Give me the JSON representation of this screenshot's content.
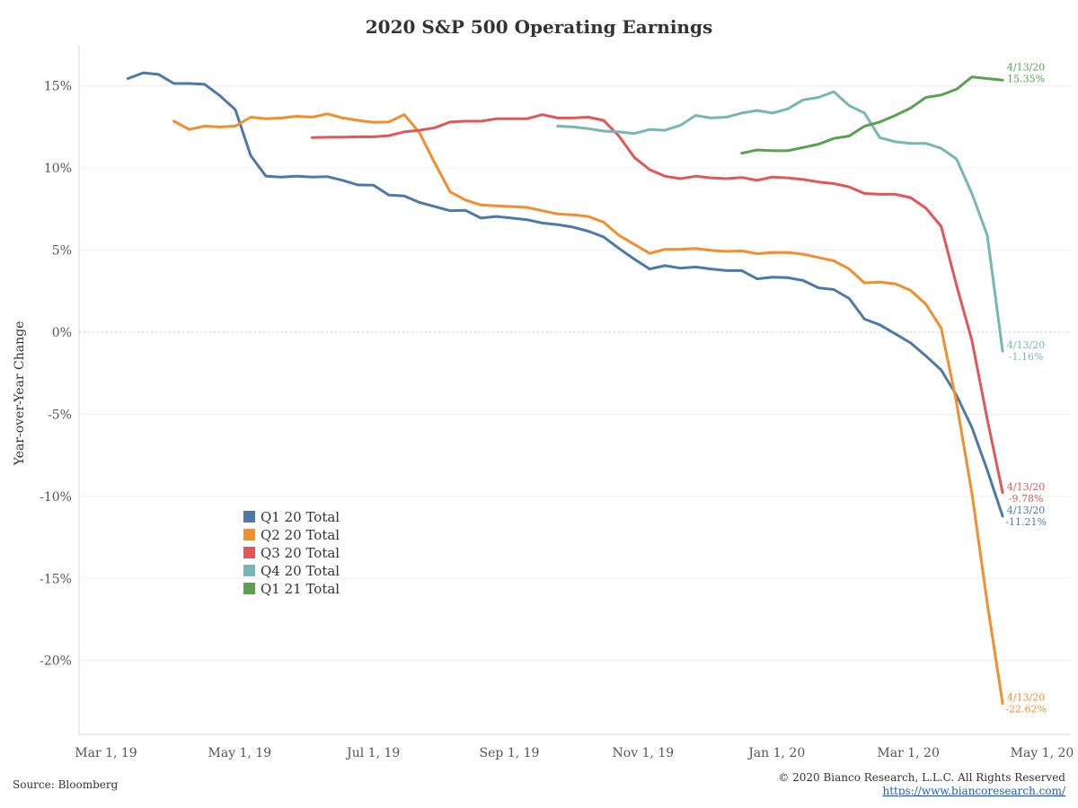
{
  "chart_data": {
    "type": "line",
    "title": "2020 S&P 500 Operating Earnings",
    "ylabel": "Year-over-Year Change",
    "xlabel": "",
    "x_start": "2019-03-01",
    "x_end": "2020-05-01",
    "x_ticks": [
      {
        "date": "2019-03-01",
        "label": "Mar 1, 19"
      },
      {
        "date": "2019-05-01",
        "label": "May 1, 19"
      },
      {
        "date": "2019-07-01",
        "label": "Jul 1, 19"
      },
      {
        "date": "2019-09-01",
        "label": "Sep 1, 19"
      },
      {
        "date": "2019-11-01",
        "label": "Nov 1, 19"
      },
      {
        "date": "2020-01-01",
        "label": "Jan 1, 20"
      },
      {
        "date": "2020-03-01",
        "label": "Mar 1, 20"
      },
      {
        "date": "2020-05-01",
        "label": "May 1, 20"
      }
    ],
    "y_ticks": [
      {
        "value": 15,
        "label": "15%"
      },
      {
        "value": 10,
        "label": "10%"
      },
      {
        "value": 5,
        "label": "5%"
      },
      {
        "value": 0,
        "label": "0%"
      },
      {
        "value": -5,
        "label": "-5%"
      },
      {
        "value": -10,
        "label": "-10%"
      },
      {
        "value": -15,
        "label": "-15%"
      },
      {
        "value": -20,
        "label": "-20%"
      }
    ],
    "ylim": [
      -24.5,
      17.5
    ],
    "grid": true,
    "legend_position": "lower-left",
    "series": [
      {
        "name": "Q1 20 Total",
        "color": "#4e79a7",
        "end_label": {
          "date": "4/13/20",
          "value": "-11.21%"
        },
        "points": [
          [
            "2019-03-11",
            15.45
          ],
          [
            "2019-03-18",
            15.8
          ],
          [
            "2019-03-25",
            15.7
          ],
          [
            "2019-04-01",
            15.15
          ],
          [
            "2019-04-08",
            15.15
          ],
          [
            "2019-04-15",
            15.1
          ],
          [
            "2019-04-22",
            14.4
          ],
          [
            "2019-04-29",
            13.55
          ],
          [
            "2019-05-06",
            10.75
          ],
          [
            "2019-05-13",
            9.5
          ],
          [
            "2019-05-20",
            9.45
          ],
          [
            "2019-05-27",
            9.5
          ],
          [
            "2019-06-03",
            9.45
          ],
          [
            "2019-06-10",
            9.48
          ],
          [
            "2019-06-17",
            9.25
          ],
          [
            "2019-06-24",
            8.97
          ],
          [
            "2019-07-01",
            8.95
          ],
          [
            "2019-07-08",
            8.35
          ],
          [
            "2019-07-15",
            8.3
          ],
          [
            "2019-07-22",
            7.9
          ],
          [
            "2019-07-29",
            7.65
          ],
          [
            "2019-08-05",
            7.4
          ],
          [
            "2019-08-12",
            7.42
          ],
          [
            "2019-08-19",
            6.95
          ],
          [
            "2019-08-26",
            7.05
          ],
          [
            "2019-09-02",
            6.95
          ],
          [
            "2019-09-09",
            6.85
          ],
          [
            "2019-09-16",
            6.65
          ],
          [
            "2019-09-23",
            6.55
          ],
          [
            "2019-09-30",
            6.4
          ],
          [
            "2019-10-07",
            6.15
          ],
          [
            "2019-10-14",
            5.8
          ],
          [
            "2019-10-21",
            5.1
          ],
          [
            "2019-10-28",
            4.45
          ],
          [
            "2019-11-04",
            3.85
          ],
          [
            "2019-11-11",
            4.05
          ],
          [
            "2019-11-18",
            3.9
          ],
          [
            "2019-11-25",
            3.97
          ],
          [
            "2019-12-02",
            3.85
          ],
          [
            "2019-12-09",
            3.75
          ],
          [
            "2019-12-16",
            3.75
          ],
          [
            "2019-12-23",
            3.25
          ],
          [
            "2019-12-30",
            3.35
          ],
          [
            "2020-01-06",
            3.32
          ],
          [
            "2020-01-13",
            3.15
          ],
          [
            "2020-01-20",
            2.7
          ],
          [
            "2020-01-27",
            2.6
          ],
          [
            "2020-02-03",
            2.05
          ],
          [
            "2020-02-10",
            0.8
          ],
          [
            "2020-02-17",
            0.45
          ],
          [
            "2020-02-24",
            -0.1
          ],
          [
            "2020-03-02",
            -0.65
          ],
          [
            "2020-03-09",
            -1.45
          ],
          [
            "2020-03-16",
            -2.3
          ],
          [
            "2020-03-23",
            -3.85
          ],
          [
            "2020-03-30",
            -5.8
          ],
          [
            "2020-04-06",
            -8.4
          ],
          [
            "2020-04-13",
            -11.21
          ]
        ]
      },
      {
        "name": "Q2 20 Total",
        "color": "#f28e2b",
        "end_label": {
          "date": "4/13/20",
          "value": "-22.62%"
        },
        "points": [
          [
            "2019-04-01",
            12.85
          ],
          [
            "2019-04-08",
            12.35
          ],
          [
            "2019-04-15",
            12.55
          ],
          [
            "2019-04-22",
            12.5
          ],
          [
            "2019-04-29",
            12.55
          ],
          [
            "2019-05-06",
            13.1
          ],
          [
            "2019-05-13",
            13.0
          ],
          [
            "2019-05-20",
            13.05
          ],
          [
            "2019-05-27",
            13.15
          ],
          [
            "2019-06-03",
            13.1
          ],
          [
            "2019-06-10",
            13.3
          ],
          [
            "2019-06-17",
            13.05
          ],
          [
            "2019-06-24",
            12.9
          ],
          [
            "2019-07-01",
            12.78
          ],
          [
            "2019-07-08",
            12.8
          ],
          [
            "2019-07-15",
            13.25
          ],
          [
            "2019-07-22",
            12.15
          ],
          [
            "2019-07-29",
            10.3
          ],
          [
            "2019-08-05",
            8.55
          ],
          [
            "2019-08-12",
            8.05
          ],
          [
            "2019-08-19",
            7.75
          ],
          [
            "2019-08-26",
            7.7
          ],
          [
            "2019-09-02",
            7.65
          ],
          [
            "2019-09-09",
            7.6
          ],
          [
            "2019-09-16",
            7.4
          ],
          [
            "2019-09-23",
            7.2
          ],
          [
            "2019-09-30",
            7.15
          ],
          [
            "2019-10-07",
            7.05
          ],
          [
            "2019-10-14",
            6.7
          ],
          [
            "2019-10-21",
            5.9
          ],
          [
            "2019-10-28",
            5.35
          ],
          [
            "2019-11-04",
            4.8
          ],
          [
            "2019-11-11",
            5.05
          ],
          [
            "2019-11-18",
            5.05
          ],
          [
            "2019-11-25",
            5.1
          ],
          [
            "2019-12-02",
            4.98
          ],
          [
            "2019-12-09",
            4.92
          ],
          [
            "2019-12-16",
            4.95
          ],
          [
            "2019-12-23",
            4.78
          ],
          [
            "2019-12-30",
            4.85
          ],
          [
            "2020-01-06",
            4.85
          ],
          [
            "2020-01-13",
            4.75
          ],
          [
            "2020-01-20",
            4.55
          ],
          [
            "2020-01-27",
            4.35
          ],
          [
            "2020-02-03",
            3.85
          ],
          [
            "2020-02-10",
            3.0
          ],
          [
            "2020-02-17",
            3.05
          ],
          [
            "2020-02-24",
            2.95
          ],
          [
            "2020-03-02",
            2.55
          ],
          [
            "2020-03-09",
            1.7
          ],
          [
            "2020-03-16",
            0.25
          ],
          [
            "2020-03-23",
            -4.3
          ],
          [
            "2020-03-30",
            -9.8
          ],
          [
            "2020-04-06",
            -16.5
          ],
          [
            "2020-04-13",
            -22.62
          ]
        ]
      },
      {
        "name": "Q3 20 Total",
        "color": "#e15759",
        "end_label": {
          "date": "4/13/20",
          "value": "-9.78%"
        },
        "points": [
          [
            "2019-06-03",
            11.85
          ],
          [
            "2019-06-10",
            11.87
          ],
          [
            "2019-06-17",
            11.88
          ],
          [
            "2019-06-24",
            11.9
          ],
          [
            "2019-07-01",
            11.9
          ],
          [
            "2019-07-08",
            11.97
          ],
          [
            "2019-07-15",
            12.2
          ],
          [
            "2019-07-22",
            12.3
          ],
          [
            "2019-07-29",
            12.45
          ],
          [
            "2019-08-05",
            12.8
          ],
          [
            "2019-08-12",
            12.85
          ],
          [
            "2019-08-19",
            12.85
          ],
          [
            "2019-08-26",
            13.0
          ],
          [
            "2019-09-02",
            13.0
          ],
          [
            "2019-09-09",
            13.0
          ],
          [
            "2019-09-16",
            13.25
          ],
          [
            "2019-09-23",
            13.05
          ],
          [
            "2019-09-30",
            13.05
          ],
          [
            "2019-10-07",
            13.1
          ],
          [
            "2019-10-14",
            12.9
          ],
          [
            "2019-10-21",
            11.95
          ],
          [
            "2019-10-28",
            10.65
          ],
          [
            "2019-11-04",
            9.9
          ],
          [
            "2019-11-11",
            9.5
          ],
          [
            "2019-11-18",
            9.35
          ],
          [
            "2019-11-25",
            9.5
          ],
          [
            "2019-12-02",
            9.4
          ],
          [
            "2019-12-09",
            9.35
          ],
          [
            "2019-12-16",
            9.42
          ],
          [
            "2019-12-23",
            9.25
          ],
          [
            "2019-12-30",
            9.45
          ],
          [
            "2020-01-06",
            9.4
          ],
          [
            "2020-01-13",
            9.3
          ],
          [
            "2020-01-20",
            9.15
          ],
          [
            "2020-01-27",
            9.05
          ],
          [
            "2020-02-03",
            8.85
          ],
          [
            "2020-02-10",
            8.45
          ],
          [
            "2020-02-17",
            8.4
          ],
          [
            "2020-02-24",
            8.4
          ],
          [
            "2020-03-02",
            8.2
          ],
          [
            "2020-03-09",
            7.55
          ],
          [
            "2020-03-16",
            6.45
          ],
          [
            "2020-03-23",
            2.85
          ],
          [
            "2020-03-30",
            -0.5
          ],
          [
            "2020-04-06",
            -5.3
          ],
          [
            "2020-04-13",
            -9.78
          ]
        ]
      },
      {
        "name": "Q4 20 Total",
        "color": "#76b7b2",
        "end_label": {
          "date": "4/13/20",
          "value": "-1.16%"
        },
        "points": [
          [
            "2019-09-23",
            12.55
          ],
          [
            "2019-09-30",
            12.5
          ],
          [
            "2019-10-07",
            12.4
          ],
          [
            "2019-10-14",
            12.25
          ],
          [
            "2019-10-21",
            12.2
          ],
          [
            "2019-10-28",
            12.1
          ],
          [
            "2019-11-04",
            12.35
          ],
          [
            "2019-11-11",
            12.3
          ],
          [
            "2019-11-18",
            12.6
          ],
          [
            "2019-11-25",
            13.2
          ],
          [
            "2019-12-02",
            13.05
          ],
          [
            "2019-12-09",
            13.1
          ],
          [
            "2019-12-16",
            13.35
          ],
          [
            "2019-12-23",
            13.5
          ],
          [
            "2019-12-30",
            13.35
          ],
          [
            "2020-01-06",
            13.6
          ],
          [
            "2020-01-13",
            14.15
          ],
          [
            "2020-01-20",
            14.3
          ],
          [
            "2020-01-27",
            14.65
          ],
          [
            "2020-02-03",
            13.8
          ],
          [
            "2020-02-10",
            13.35
          ],
          [
            "2020-02-17",
            11.85
          ],
          [
            "2020-02-24",
            11.6
          ],
          [
            "2020-03-02",
            11.5
          ],
          [
            "2020-03-09",
            11.5
          ],
          [
            "2020-03-16",
            11.2
          ],
          [
            "2020-03-23",
            10.55
          ],
          [
            "2020-03-30",
            8.45
          ],
          [
            "2020-04-06",
            5.9
          ],
          [
            "2020-04-13",
            -1.16
          ]
        ]
      },
      {
        "name": "Q1 21 Total",
        "color": "#59a14f",
        "end_label": {
          "date": "4/13/20",
          "value": "15.35%"
        },
        "points": [
          [
            "2019-12-16",
            10.9
          ],
          [
            "2019-12-23",
            11.1
          ],
          [
            "2019-12-30",
            11.05
          ],
          [
            "2020-01-06",
            11.05
          ],
          [
            "2020-01-13",
            11.25
          ],
          [
            "2020-01-20",
            11.45
          ],
          [
            "2020-01-27",
            11.8
          ],
          [
            "2020-02-03",
            11.95
          ],
          [
            "2020-02-10",
            12.55
          ],
          [
            "2020-02-17",
            12.8
          ],
          [
            "2020-02-24",
            13.2
          ],
          [
            "2020-03-02",
            13.65
          ],
          [
            "2020-03-09",
            14.3
          ],
          [
            "2020-03-16",
            14.45
          ],
          [
            "2020-03-23",
            14.8
          ],
          [
            "2020-03-30",
            15.55
          ],
          [
            "2020-04-06",
            15.45
          ],
          [
            "2020-04-13",
            15.35
          ]
        ]
      }
    ]
  },
  "footer": {
    "source": "Source: Bloomberg",
    "copyright": "© 2020 Bianco Research, L.L.C. All Rights Reserved",
    "url": "https://www.biancoresearch.com/"
  }
}
